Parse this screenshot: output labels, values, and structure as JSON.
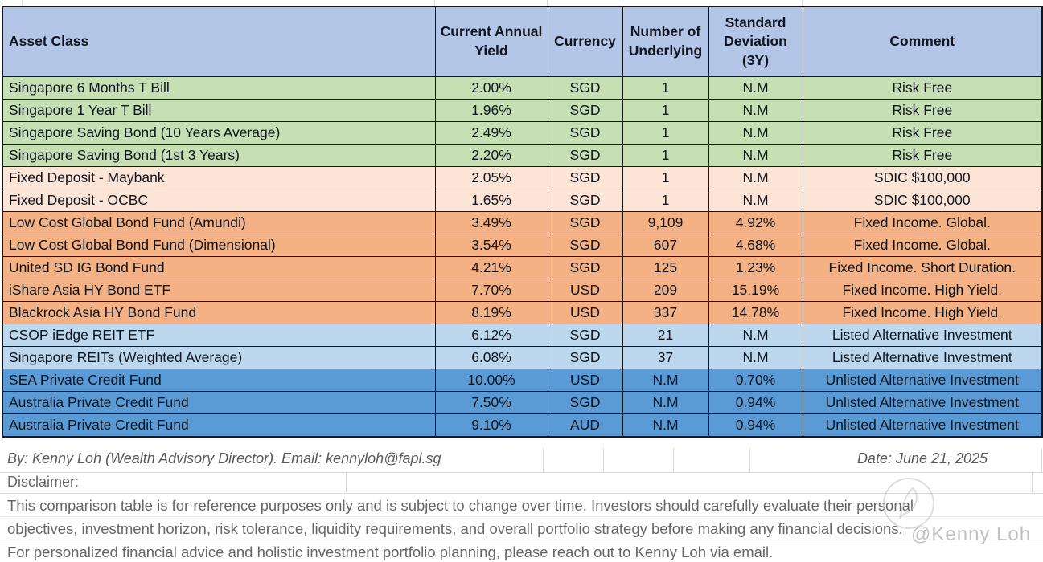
{
  "colors": {
    "header_bg": "#b4c6e7",
    "border": "#161616",
    "footer_text": "#595959",
    "groups": {
      "risk_free": "#c6e0b4",
      "fixed_deposit": "#fce4d6",
      "fixed_income": "#f4b183",
      "listed_alternative": "#bdd7ee",
      "unlisted_alternative": "#5b9bd5"
    }
  },
  "table": {
    "headers": [
      "Asset Class",
      "Current Annual Yield",
      "Currency",
      "Number of Underlying",
      "Standard Deviation (3Y)",
      "Comment"
    ],
    "rows": [
      {
        "asset": "Singapore 6 Months T Bill",
        "yield": "2.00%",
        "currency": "SGD",
        "underlying": "1",
        "std_dev": "N.M",
        "comment": "Risk Free",
        "group": "risk_free"
      },
      {
        "asset": "Singapore 1 Year T Bill",
        "yield": "1.96%",
        "currency": "SGD",
        "underlying": "1",
        "std_dev": "N.M",
        "comment": "Risk Free",
        "group": "risk_free"
      },
      {
        "asset": "Singapore Saving Bond (10 Years Average)",
        "yield": "2.49%",
        "currency": "SGD",
        "underlying": "1",
        "std_dev": "N.M",
        "comment": "Risk Free",
        "group": "risk_free"
      },
      {
        "asset": "Singapore Saving Bond (1st 3 Years)",
        "yield": "2.20%",
        "currency": "SGD",
        "underlying": "1",
        "std_dev": "N.M",
        "comment": "Risk Free",
        "group": "risk_free"
      },
      {
        "asset": "Fixed Deposit - Maybank",
        "yield": "2.05%",
        "currency": "SGD",
        "underlying": "1",
        "std_dev": "N.M",
        "comment": "SDIC $100,000",
        "group": "fixed_deposit"
      },
      {
        "asset": "Fixed Deposit - OCBC",
        "yield": "1.65%",
        "currency": "SGD",
        "underlying": "1",
        "std_dev": "N.M",
        "comment": "SDIC $100,000",
        "group": "fixed_deposit"
      },
      {
        "asset": "Low Cost Global Bond Fund (Amundi)",
        "yield": "3.49%",
        "currency": "SGD",
        "underlying": "9,109",
        "std_dev": "4.92%",
        "comment": "Fixed Income. Global.",
        "group": "fixed_income"
      },
      {
        "asset": "Low Cost Global Bond Fund (Dimensional)",
        "yield": "3.54%",
        "currency": "SGD",
        "underlying": "607",
        "std_dev": "4.68%",
        "comment": "Fixed Income. Global.",
        "group": "fixed_income"
      },
      {
        "asset": "United SD IG Bond Fund",
        "yield": "4.21%",
        "currency": "SGD",
        "underlying": "125",
        "std_dev": "1.23%",
        "comment": "Fixed Income. Short Duration.",
        "group": "fixed_income"
      },
      {
        "asset": "iShare Asia HY Bond ETF",
        "yield": "7.70%",
        "currency": "USD",
        "underlying": "209",
        "std_dev": "15.19%",
        "comment": "Fixed Income. High Yield.",
        "group": "fixed_income"
      },
      {
        "asset": "Blackrock Asia HY Bond Fund",
        "yield": "8.19%",
        "currency": "USD",
        "underlying": "337",
        "std_dev": "14.78%",
        "comment": "Fixed Income. High Yield.",
        "group": "fixed_income"
      },
      {
        "asset": "CSOP iEdge REIT ETF",
        "yield": "6.12%",
        "currency": "SGD",
        "underlying": "21",
        "std_dev": "N.M",
        "comment": "Listed Alternative Investment",
        "group": "listed_alternative"
      },
      {
        "asset": "Singapore REITs (Weighted Average)",
        "yield": "6.08%",
        "currency": "SGD",
        "underlying": "37",
        "std_dev": "N.M",
        "comment": "Listed Alternative Investment",
        "group": "listed_alternative"
      },
      {
        "asset": "SEA Private Credit Fund",
        "yield": "10.00%",
        "currency": "USD",
        "underlying": "N.M",
        "std_dev": "0.70%",
        "comment": "Unlisted Alternative Investment",
        "group": "unlisted_alternative"
      },
      {
        "asset": "Australia Private Credit Fund",
        "yield": "7.50%",
        "currency": "SGD",
        "underlying": "N.M",
        "std_dev": "0.94%",
        "comment": "Unlisted Alternative Investment",
        "group": "unlisted_alternative"
      },
      {
        "asset": "Australia Private Credit Fund",
        "yield": "9.10%",
        "currency": "AUD",
        "underlying": "N.M",
        "std_dev": "0.94%",
        "comment": "Unlisted Alternative Investment",
        "group": "unlisted_alternative"
      }
    ]
  },
  "footer": {
    "byline": "By: Kenny Loh (Wealth Advisory Director). Email: kennyloh@fapl.sg",
    "date": "Date: June 21, 2025",
    "disclaimer_label": "Disclaimer:",
    "disclaimer_lines": [
      "This comparison table is for reference purposes only and is subject to change over time. Investors should carefully evaluate their personal",
      "objectives, investment horizon, risk tolerance, liquidity requirements, and overall portfolio strategy before making any financial decisions.",
      "For personalized financial advice and holistic investment portfolio planning, please reach out to Kenny Loh via email."
    ],
    "watermark": "@Kenny Loh"
  }
}
